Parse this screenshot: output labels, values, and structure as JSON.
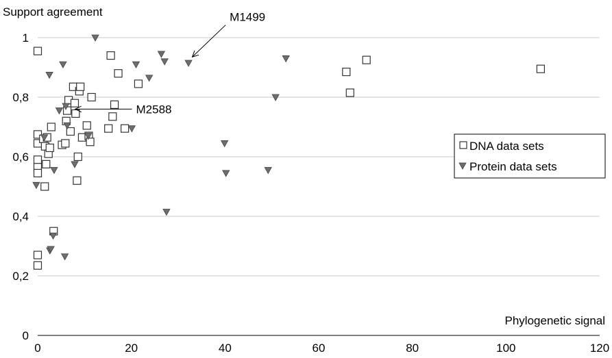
{
  "chart_data": {
    "type": "scatter",
    "ylabel": "Support agreement",
    "xlabel": "Phylogenetic signal",
    "xlim": [
      0,
      120
    ],
    "ylim": [
      0,
      1.05
    ],
    "x_ticks": [
      0,
      20,
      40,
      60,
      80,
      100,
      120
    ],
    "x_tick_labels": [
      "0",
      "20",
      "40",
      "60",
      "80",
      "100",
      "120"
    ],
    "y_ticks": [
      0,
      0.2,
      0.4,
      0.6,
      0.8,
      1
    ],
    "y_tick_labels": [
      "0",
      "0,2",
      "0,4",
      "0,6",
      "0,8",
      "1"
    ],
    "grid": "horizontal",
    "legend": {
      "position": "right",
      "entries": [
        "DNA data sets",
        "Protein data sets"
      ]
    },
    "annotations": [
      {
        "text": "M1499",
        "x": 33.0,
        "y": 0.935,
        "label_x": 41.0,
        "label_y": 1.07
      },
      {
        "text": "M2588",
        "x": 8.0,
        "y": 0.76,
        "label_x": 21.0,
        "label_y": 0.76
      }
    ],
    "series": [
      {
        "name": "DNA data sets",
        "marker": "square",
        "color": "#ffffff",
        "edge": "#333333",
        "points": [
          [
            0.0,
            0.955
          ],
          [
            0.0,
            0.675
          ],
          [
            0.0,
            0.645
          ],
          [
            0.0,
            0.59
          ],
          [
            0.0,
            0.565
          ],
          [
            0.0,
            0.545
          ],
          [
            0.0,
            0.27
          ],
          [
            0.0,
            0.235
          ],
          [
            1.2,
            0.66
          ],
          [
            1.6,
            0.635
          ],
          [
            2.0,
            0.665
          ],
          [
            1.8,
            0.575
          ],
          [
            2.3,
            0.61
          ],
          [
            2.6,
            0.63
          ],
          [
            2.9,
            0.7
          ],
          [
            1.5,
            0.5
          ],
          [
            3.4,
            0.35
          ],
          [
            5.2,
            0.64
          ],
          [
            5.9,
            0.645
          ],
          [
            6.1,
            0.72
          ],
          [
            6.3,
            0.755
          ],
          [
            6.6,
            0.79
          ],
          [
            7.0,
            0.685
          ],
          [
            7.6,
            0.835
          ],
          [
            7.9,
            0.78
          ],
          [
            8.1,
            0.745
          ],
          [
            8.4,
            0.52
          ],
          [
            8.6,
            0.6
          ],
          [
            8.9,
            0.82
          ],
          [
            9.1,
            0.835
          ],
          [
            9.5,
            0.665
          ],
          [
            10.5,
            0.705
          ],
          [
            10.9,
            0.67
          ],
          [
            11.2,
            0.65
          ],
          [
            11.5,
            0.8
          ],
          [
            15.1,
            0.695
          ],
          [
            15.6,
            0.94
          ],
          [
            16.0,
            0.735
          ],
          [
            16.4,
            0.775
          ],
          [
            17.2,
            0.88
          ],
          [
            18.6,
            0.695
          ],
          [
            21.5,
            0.845
          ],
          [
            65.9,
            0.885
          ],
          [
            66.7,
            0.815
          ],
          [
            70.2,
            0.925
          ],
          [
            107.4,
            0.895
          ]
        ]
      },
      {
        "name": "Protein data sets",
        "marker": "triangle-down",
        "color": "#6e6e6e",
        "edge": "#444444",
        "points": [
          [
            -0.3,
            0.505
          ],
          [
            1.4,
            0.665
          ],
          [
            2.5,
            0.875
          ],
          [
            2.6,
            0.285
          ],
          [
            2.8,
            0.29
          ],
          [
            3.3,
            0.335
          ],
          [
            3.5,
            0.555
          ],
          [
            4.6,
            0.755
          ],
          [
            5.4,
            0.91
          ],
          [
            5.8,
            0.265
          ],
          [
            6.0,
            0.77
          ],
          [
            6.3,
            0.705
          ],
          [
            7.9,
            0.575
          ],
          [
            10.8,
            0.67
          ],
          [
            12.3,
            1.0
          ],
          [
            20.1,
            0.695
          ],
          [
            21.0,
            0.91
          ],
          [
            23.8,
            0.865
          ],
          [
            26.4,
            0.945
          ],
          [
            27.1,
            0.92
          ],
          [
            27.5,
            0.415
          ],
          [
            32.2,
            0.915
          ],
          [
            39.9,
            0.645
          ],
          [
            40.2,
            0.545
          ],
          [
            49.2,
            0.555
          ],
          [
            50.8,
            0.8
          ],
          [
            53.0,
            0.93
          ]
        ]
      }
    ]
  }
}
